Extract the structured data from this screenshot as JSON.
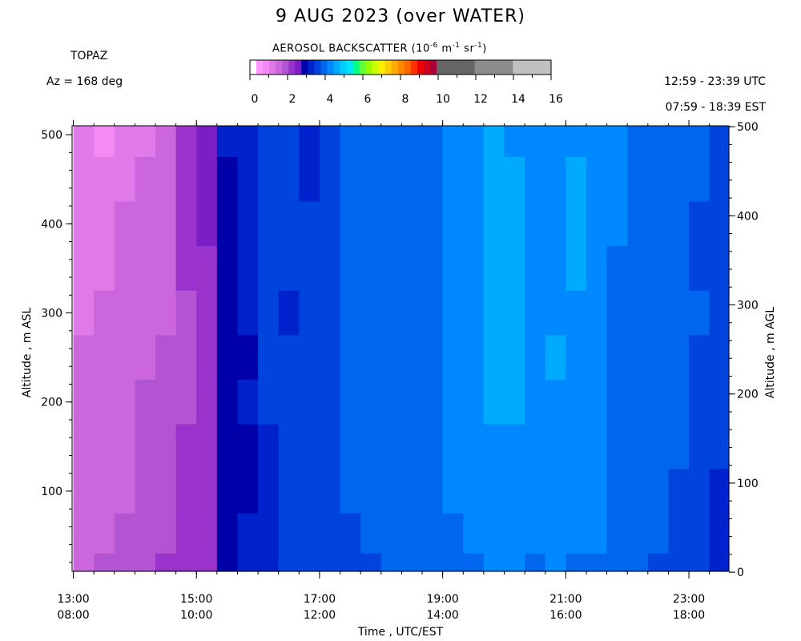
{
  "header": {
    "title": "9 AUG 2023 (over WATER)",
    "station": "TOPAZ",
    "azimuth": "Az = 168 deg",
    "utc_range": "12:59 - 23:39 UTC",
    "est_range": "07:59 - 18:39 EST"
  },
  "colorbar": {
    "title_prefix": "AEROSOL BACKSCATTER (10",
    "title_exp1": "-6",
    "title_mid": " m",
    "title_exp2": "-1",
    "title_mid2": " sr",
    "title_exp3": "-1",
    "title_suffix": ")",
    "tick_labels": [
      "0",
      "2",
      "4",
      "6",
      "8",
      "10",
      "12",
      "14",
      "16"
    ],
    "fine_colors": [
      "#ffffff",
      "#ff99ff",
      "#f58af5",
      "#e07ae8",
      "#cc66dd",
      "#b355d2",
      "#9933cc",
      "#7a1fc6",
      "#0000a8",
      "#0022cc",
      "#0044dd",
      "#0066ee",
      "#0088ff",
      "#00aaff",
      "#00ccff",
      "#00e5ff",
      "#00ff88",
      "#66ff33",
      "#99ff00",
      "#ccff00",
      "#ffee00",
      "#ffcc00",
      "#ffaa00",
      "#ff8800",
      "#ff6600",
      "#ff3300",
      "#ee0000",
      "#cc0022",
      "#aa0033"
    ],
    "coarse_colors": [
      "#666666",
      "#8c8c8c",
      "#c0c0c0"
    ]
  },
  "chart_data": {
    "type": "heatmap",
    "title": "9 AUG 2023 (over WATER)",
    "xlabel": "Time , UTC/EST",
    "ylabel_left": "Altitude , m ASL",
    "ylabel_right": "Altitude , m AGL",
    "x_range_utc_hours": [
      12.98,
      23.65
    ],
    "y_range_m": [
      10,
      510
    ],
    "x_ticks_utc": [
      "13:00",
      "15:00",
      "17:00",
      "19:00",
      "21:00",
      "23:00"
    ],
    "x_ticks_est": [
      "08:00",
      "10:00",
      "12:00",
      "14:00",
      "16:00",
      "18:00"
    ],
    "y_ticks_left": [
      "100",
      "200",
      "300",
      "400",
      "500"
    ],
    "y_ticks_right": [
      "0",
      "100",
      "200",
      "300",
      "400",
      "500"
    ],
    "time_columns_utc": [
      "13:00",
      "13:20",
      "13:40",
      "14:00",
      "14:20",
      "14:40",
      "15:00",
      "15:20",
      "15:40",
      "16:00",
      "16:20",
      "16:40",
      "17:00",
      "17:20",
      "17:40",
      "18:00",
      "18:20",
      "18:40",
      "19:00",
      "19:20",
      "19:40",
      "20:00",
      "20:20",
      "20:40",
      "21:00",
      "21:20",
      "21:40",
      "22:00",
      "22:20",
      "22:40",
      "23:00",
      "23:20"
    ],
    "altitude_rows_m": [
      500,
      450,
      400,
      350,
      300,
      250,
      200,
      150,
      100,
      50,
      10
    ],
    "backscatter_1e-6": [
      [
        0.9,
        0.8,
        1.2,
        1.2,
        1.6,
        2.3,
        2.6,
        3.1,
        3.3,
        3.6,
        3.4,
        3.3,
        3.6,
        3.8,
        3.9,
        3.9,
        4.0,
        4.0,
        4.3,
        4.3,
        4.5,
        4.4,
        4.4,
        4.4,
        4.3,
        4.3,
        4.4,
        4.0,
        4.0,
        3.9,
        3.8,
        3.6
      ],
      [
        0.9,
        0.9,
        1.2,
        1.3,
        1.6,
        2.2,
        2.6,
        3.0,
        3.2,
        3.6,
        3.4,
        3.3,
        3.6,
        4.0,
        4.1,
        4.0,
        3.9,
        4.0,
        4.3,
        4.3,
        4.5,
        4.6,
        4.4,
        4.4,
        4.5,
        4.3,
        4.4,
        4.0,
        3.9,
        3.9,
        3.8,
        3.5
      ],
      [
        1.0,
        1.0,
        1.4,
        1.4,
        1.6,
        2.0,
        2.4,
        3.0,
        3.2,
        3.6,
        3.6,
        3.5,
        3.6,
        4.0,
        4.0,
        3.9,
        4.0,
        4.0,
        4.2,
        4.4,
        4.5,
        4.6,
        4.3,
        4.4,
        4.5,
        4.4,
        4.3,
        3.9,
        3.9,
        4.1,
        3.7,
        3.4
      ],
      [
        1.1,
        1.2,
        1.4,
        1.5,
        1.6,
        2.0,
        2.3,
        3.0,
        3.2,
        3.6,
        3.5,
        3.5,
        3.6,
        4.0,
        4.1,
        4.0,
        3.9,
        4.0,
        4.3,
        4.3,
        4.6,
        4.6,
        4.3,
        4.4,
        4.6,
        4.3,
        4.1,
        3.9,
        4.0,
        4.0,
        3.7,
        3.5
      ],
      [
        1.2,
        1.3,
        1.4,
        1.6,
        1.6,
        1.9,
        2.2,
        3.0,
        3.2,
        3.6,
        3.3,
        3.5,
        3.7,
        4.0,
        4.0,
        3.9,
        4.0,
        4.0,
        4.3,
        4.3,
        4.5,
        4.5,
        4.3,
        4.4,
        4.4,
        4.4,
        4.1,
        3.9,
        3.9,
        4.0,
        3.8,
        3.5
      ],
      [
        1.3,
        1.4,
        1.5,
        1.6,
        1.8,
        1.9,
        2.2,
        3.0,
        3.0,
        3.6,
        3.4,
        3.6,
        3.6,
        3.9,
        4.1,
        4.0,
        4.0,
        4.0,
        4.2,
        4.3,
        4.5,
        4.5,
        4.3,
        4.5,
        4.4,
        4.3,
        4.0,
        4.0,
        3.9,
        3.9,
        3.6,
        3.4
      ],
      [
        1.4,
        1.5,
        1.6,
        1.7,
        1.8,
        1.9,
        2.2,
        2.9,
        3.1,
        3.4,
        3.4,
        3.6,
        3.6,
        3.9,
        4.0,
        4.0,
        4.0,
        4.0,
        4.2,
        4.3,
        4.5,
        4.5,
        4.3,
        4.4,
        4.4,
        4.4,
        4.0,
        4.0,
        4.0,
        3.9,
        3.6,
        3.5
      ],
      [
        1.4,
        1.6,
        1.6,
        1.8,
        1.8,
        2.0,
        2.2,
        2.8,
        3.0,
        3.3,
        3.4,
        3.5,
        3.6,
        3.8,
        3.9,
        4.0,
        4.0,
        4.0,
        4.2,
        4.3,
        4.4,
        4.4,
        4.3,
        4.4,
        4.3,
        4.3,
        4.0,
        3.9,
        3.9,
        3.8,
        3.6,
        3.4
      ],
      [
        1.4,
        1.6,
        1.6,
        1.8,
        1.9,
        2.0,
        2.2,
        2.7,
        3.0,
        3.3,
        3.4,
        3.5,
        3.6,
        3.8,
        3.9,
        3.9,
        4.0,
        4.0,
        4.2,
        4.3,
        4.4,
        4.3,
        4.3,
        4.3,
        4.3,
        4.3,
        4.0,
        3.9,
        3.9,
        3.7,
        3.6,
        3.3
      ],
      [
        1.5,
        1.6,
        1.7,
        1.8,
        1.9,
        2.0,
        2.3,
        2.7,
        3.1,
        3.3,
        3.4,
        3.5,
        3.6,
        3.7,
        3.8,
        3.9,
        3.9,
        4.0,
        4.1,
        4.2,
        4.3,
        4.3,
        4.2,
        4.3,
        4.2,
        4.2,
        4.0,
        3.9,
        3.8,
        3.7,
        3.5,
        3.3
      ],
      [
        1.6,
        1.7,
        1.8,
        1.9,
        2.0,
        2.1,
        2.3,
        2.8,
        3.1,
        3.3,
        3.4,
        3.5,
        3.5,
        3.6,
        3.7,
        3.8,
        3.8,
        3.9,
        4.0,
        4.1,
        4.2,
        4.2,
        4.1,
        4.2,
        4.1,
        4.1,
        3.9,
        3.8,
        3.7,
        3.6,
        3.4,
        3.2
      ]
    ]
  },
  "axis_labels": {
    "x": "Time , UTC/EST",
    "y_left": "Altitude , m ASL",
    "y_right": "Altitude , m AGL"
  }
}
